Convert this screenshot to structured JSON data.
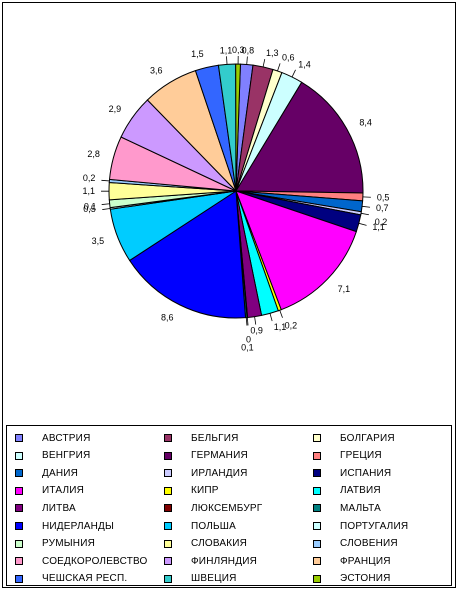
{
  "chart_data": {
    "type": "pie",
    "slices": [
      {
        "name": "АВСТРИЯ",
        "value": 0.8,
        "label": "0,8",
        "color": "#8080FF"
      },
      {
        "name": "БЕЛЬГИЯ",
        "value": 1.3,
        "label": "1,3",
        "color": "#993366"
      },
      {
        "name": "БОЛГАРИЯ",
        "value": 0.6,
        "label": "0,6",
        "color": "#FFFFCC"
      },
      {
        "name": "ВЕНГРИЯ",
        "value": 1.4,
        "label": "1,4",
        "color": "#CCFFFF"
      },
      {
        "name": "ГЕРМАНИЯ",
        "value": 8.4,
        "label": "8,4",
        "color": "#660066"
      },
      {
        "name": "ГРЕЦИЯ",
        "value": 0.5,
        "label": "0,5",
        "color": "#FF8080"
      },
      {
        "name": "ДАНИЯ",
        "value": 0.7,
        "label": "0,7",
        "color": "#0066CC"
      },
      {
        "name": "ИРЛАНДИЯ",
        "value": 0.2,
        "label": "0,2",
        "color": "#CCCCFF"
      },
      {
        "name": "ИСПАНИЯ",
        "value": 1.1,
        "label": "1,1",
        "color": "#000080"
      },
      {
        "name": "ИТАЛИЯ",
        "value": 7.1,
        "label": "7,1",
        "color": "#FF00FF"
      },
      {
        "name": "КИПР",
        "value": 0.2,
        "label": "0,2",
        "color": "#FFFF00"
      },
      {
        "name": "ЛАТВИЯ",
        "value": 1.1,
        "label": "1,1",
        "color": "#00FFFF"
      },
      {
        "name": "ЛИТВА",
        "value": 0.9,
        "label": "0,9",
        "color": "#800080"
      },
      {
        "name": "ЛЮКСЕМБУРГ",
        "value": 0.03,
        "label": "0",
        "color": "#800000"
      },
      {
        "name": "МАЛЬТА",
        "value": 0.1,
        "label": "0,1",
        "color": "#008080"
      },
      {
        "name": "НИДЕРЛАНДЫ",
        "value": 8.6,
        "label": "8,6",
        "color": "#0000FF"
      },
      {
        "name": "ПОЛЬША",
        "value": 3.5,
        "label": "3,5",
        "color": "#00CCFF"
      },
      {
        "name": "ПОРТУГАЛИЯ",
        "value": 0.1,
        "label": "0,1",
        "color": "#CCFFFF"
      },
      {
        "name": "РУМЫНИЯ",
        "value": 0.5,
        "label": "0,5",
        "color": "#CCFFCC"
      },
      {
        "name": "СЛОВАКИЯ",
        "value": 1.1,
        "label": "1,1",
        "color": "#FFFF99"
      },
      {
        "name": "СЛОВЕНИЯ",
        "value": 0.2,
        "label": "0,2",
        "color": "#99CCFF"
      },
      {
        "name": "СОЕДКОРОЛЕВСТВО",
        "value": 2.8,
        "label": "2,8",
        "color": "#FF99CC"
      },
      {
        "name": "ФИНЛЯНДИЯ",
        "value": 2.9,
        "label": "2,9",
        "color": "#CC99FF"
      },
      {
        "name": "ФРАНЦИЯ",
        "value": 3.6,
        "label": "3,6",
        "color": "#FFCC99"
      },
      {
        "name": "ЧЕШСКАЯ РЕСП.",
        "value": 1.5,
        "label": "1,5",
        "color": "#3366FF"
      },
      {
        "name": "ШВЕЦИЯ",
        "value": 1.1,
        "label": "1,1",
        "color": "#33CCCC"
      },
      {
        "name": "ЭСТОНИЯ",
        "value": 0.3,
        "label": "0,3",
        "color": "#99CC00"
      }
    ],
    "legend_position": "bottom"
  }
}
